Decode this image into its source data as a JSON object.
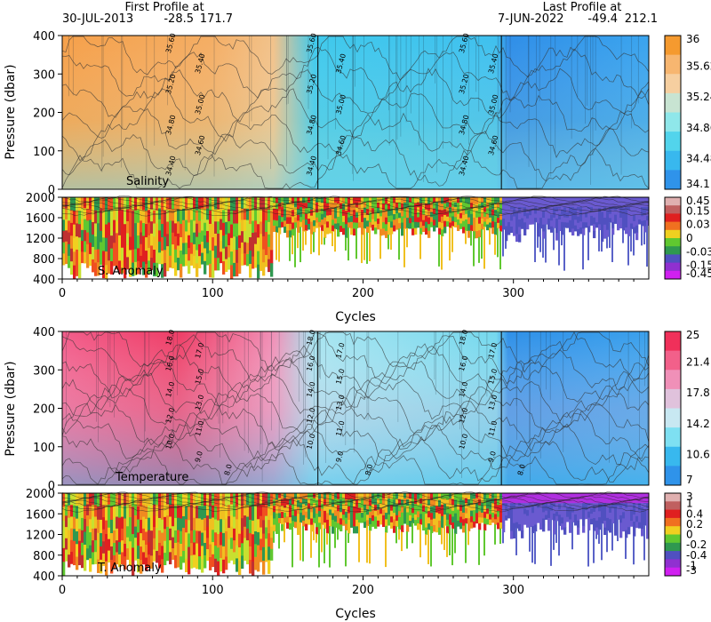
{
  "header": {
    "first_label": "First Profile at",
    "first_date": "30-JUL-2013",
    "first_lat": "-28.5",
    "first_lon": "171.7",
    "last_label": "Last Profile at",
    "last_date": "7-JUN-2022",
    "last_lat": "-49.4",
    "last_lon": "212.1"
  },
  "chart_data": [
    {
      "type": "heatmap",
      "title": "Salinity",
      "xlabel": "",
      "ylabel": "Pressure (dbar)",
      "xlim": [
        0,
        390
      ],
      "ylim": [
        400,
        0
      ],
      "yticks": [
        0,
        100,
        200,
        300,
        400
      ],
      "colorbar": {
        "ticks": [
          "36",
          "35.62",
          "35.24",
          "34.86",
          "34.48",
          "34.1"
        ],
        "colors": [
          "#f59a2f",
          "#f7b670",
          "#f6cfa0",
          "#c8e4d2",
          "#8fe7ea",
          "#52d4ec",
          "#38b8ee",
          "#2f93ea"
        ]
      },
      "contour_labels": [
        "35.60",
        "35.40",
        "35.20",
        "35.00",
        "34.80",
        "34.60",
        "34.40"
      ]
    },
    {
      "type": "heatmap",
      "title": "S. Anomaly",
      "xlabel": "Cycles",
      "ylabel": "",
      "xlim": [
        0,
        390
      ],
      "xticks": [
        0,
        100,
        200,
        300
      ],
      "ylim": [
        2000,
        400
      ],
      "yticks": [
        400,
        800,
        1200,
        1600,
        2000
      ],
      "colorbar": {
        "ticks": [
          "0.45",
          "0.15",
          "0.03",
          "0",
          "-0.03",
          "-0.15",
          "-0.45"
        ],
        "colors": [
          "#e0b0b0",
          "#c06060",
          "#e02020",
          "#f07020",
          "#f0d020",
          "#60c830",
          "#2f9850",
          "#5050c0",
          "#9030d0",
          "#d020f0"
        ]
      }
    },
    {
      "type": "heatmap",
      "title": "Temperature",
      "xlabel": "",
      "ylabel": "Pressure (dbar)",
      "xlim": [
        0,
        390
      ],
      "ylim": [
        400,
        0
      ],
      "yticks": [
        0,
        100,
        200,
        300,
        400
      ],
      "colorbar": {
        "ticks": [
          "25",
          "21.4",
          "17.8",
          "14.2",
          "10.6",
          "7"
        ],
        "colors": [
          "#f0305a",
          "#f2608a",
          "#f090b8",
          "#e0c2dc",
          "#c8e8f2",
          "#7ee0f2",
          "#38b8ee",
          "#2f93ea"
        ]
      },
      "contour_labels": [
        "18.0",
        "17.0",
        "16.0",
        "15.0",
        "14.0",
        "13.0",
        "12.0",
        "11.0",
        "10.0",
        "9.0",
        "8.0"
      ]
    },
    {
      "type": "heatmap",
      "title": "T. Anomaly",
      "xlabel": "Cycles",
      "ylabel": "",
      "xlim": [
        0,
        390
      ],
      "xticks": [
        0,
        100,
        200,
        300
      ],
      "ylim": [
        2000,
        400
      ],
      "yticks": [
        400,
        800,
        1200,
        1600,
        2000
      ],
      "colorbar": {
        "ticks": [
          "3",
          "1",
          "0.4",
          "0.2",
          "0",
          "-0.2",
          "-0.4",
          "-1",
          "-3"
        ],
        "colors": [
          "#e0b0b0",
          "#c06060",
          "#e02020",
          "#f07020",
          "#f0d020",
          "#60c830",
          "#2f9850",
          "#5050c0",
          "#9030d0",
          "#d020f0"
        ]
      }
    }
  ]
}
